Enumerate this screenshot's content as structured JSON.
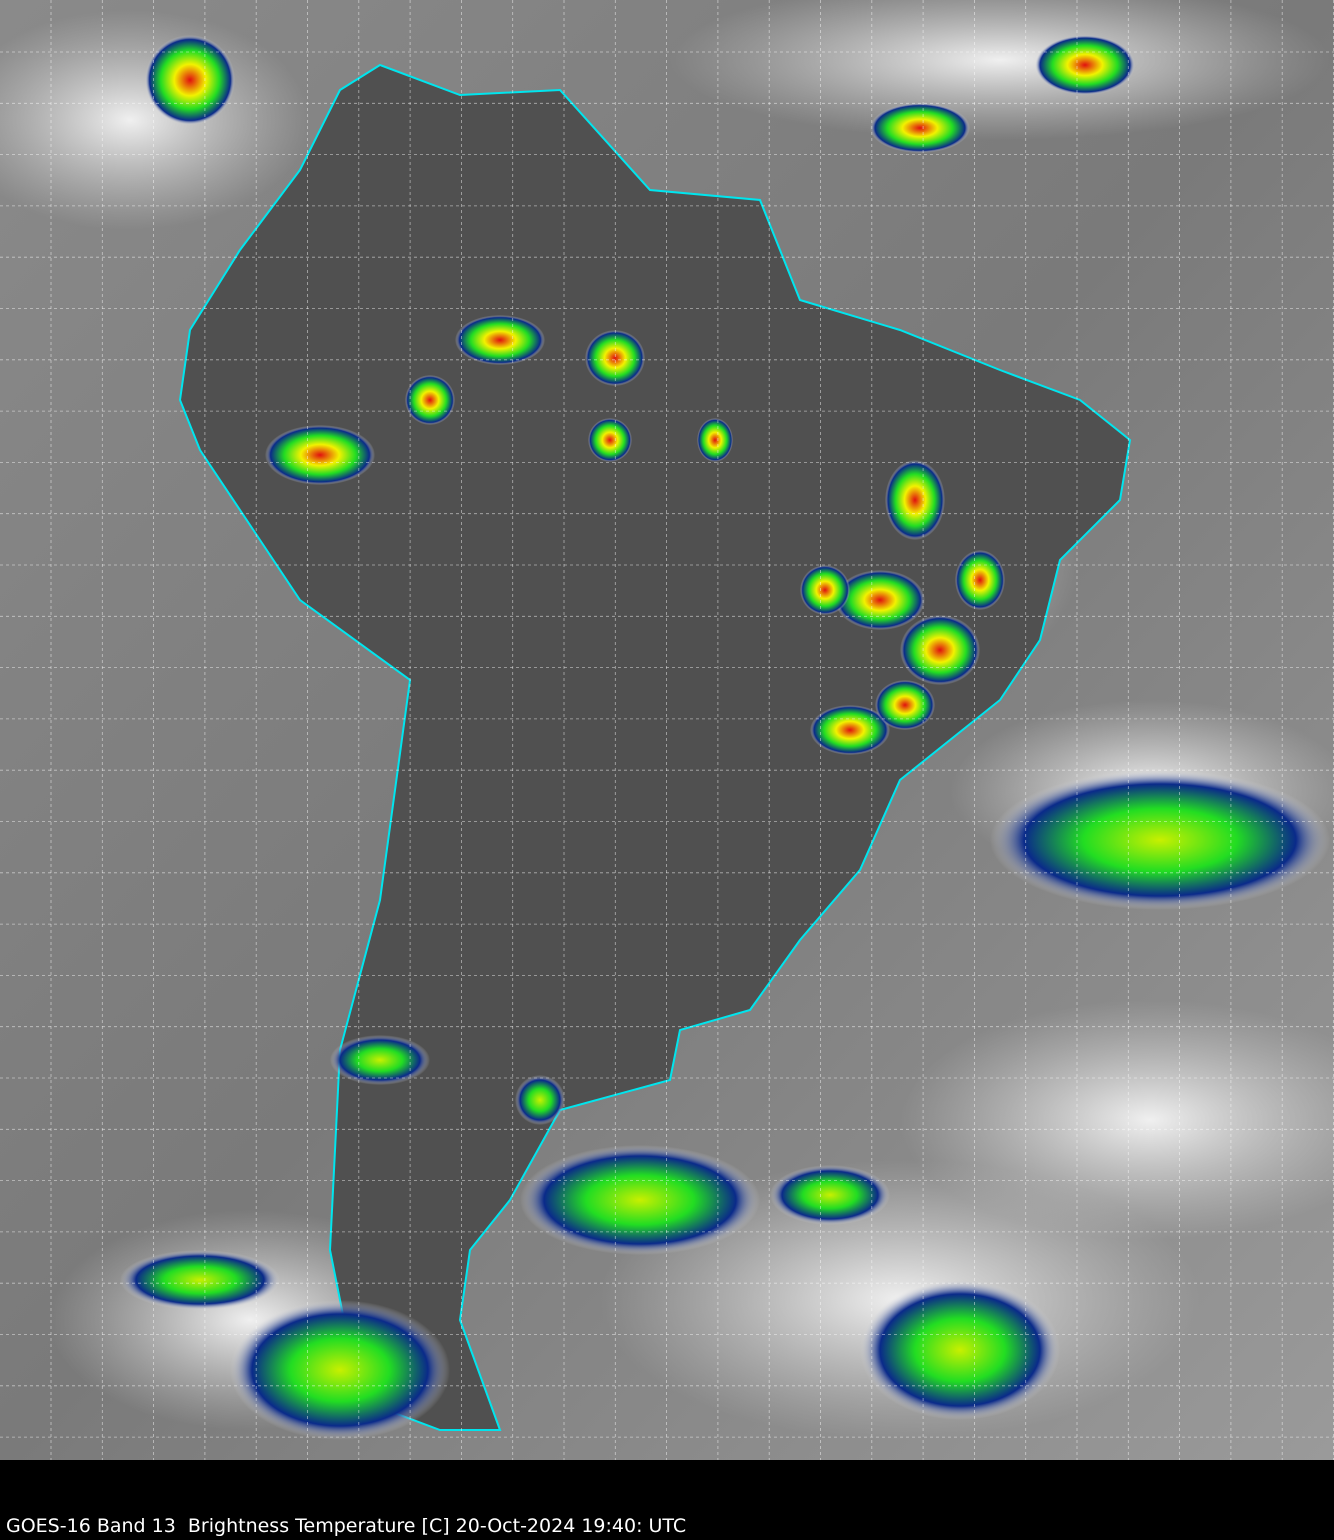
{
  "caption": "GOES-16 Band 13  Brightness Temperature [C] 20-Oct-2024 19:40: UTC",
  "map": {
    "satellite": "GOES-16",
    "band": "Band 13",
    "quantity": "Brightness Temperature [C]",
    "date": "20-Oct-2024",
    "time": "19:40: UTC",
    "graticule": true,
    "colors": {
      "border_lines": "#00e5ee",
      "grid_lines": "#ffffff",
      "background_gray": "#6e6e6e",
      "cold_cloud_green": "#22dd22",
      "cold_cloud_yellow": "#f2f200",
      "cold_cloud_red": "#e01010",
      "cold_cloud_blue": "#0a2a8a"
    }
  }
}
